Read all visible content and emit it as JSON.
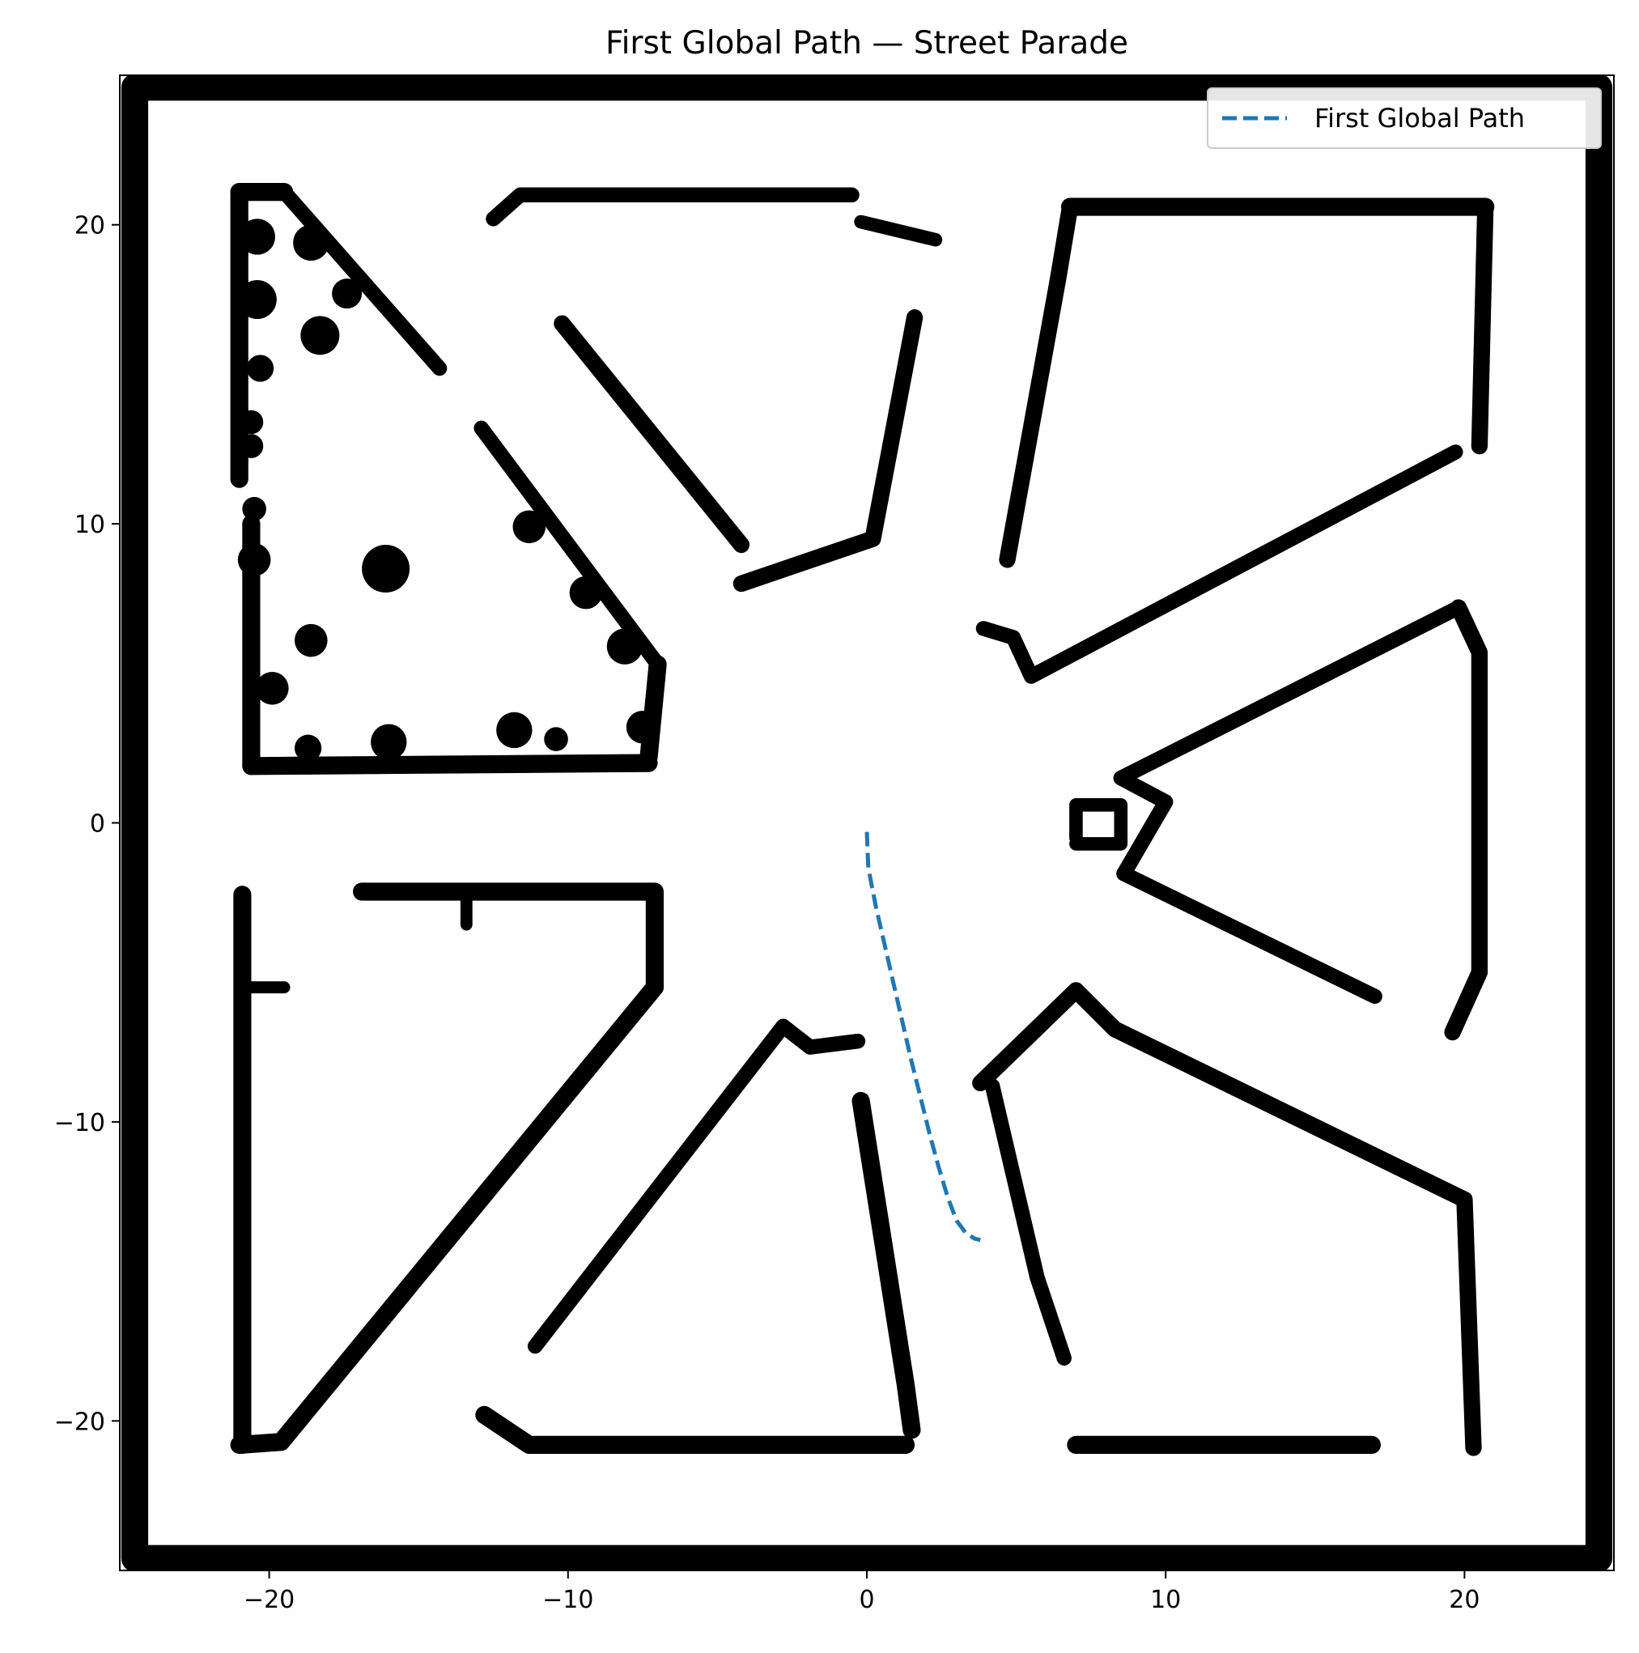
{
  "chart_data": {
    "type": "line",
    "title": "First Global Path — Street Parade",
    "xlabel": "",
    "ylabel": "",
    "xlim": [
      -25,
      25
    ],
    "ylim": [
      -25,
      25
    ],
    "xticks": [
      -20,
      -10,
      0,
      10,
      20
    ],
    "yticks": [
      20,
      10,
      0,
      -10,
      -20
    ],
    "xtick_labels": [
      "−20",
      "−10",
      "0",
      "10",
      "20"
    ],
    "ytick_labels": [
      "20",
      "10",
      "0",
      "−10",
      "−20"
    ],
    "grid": false,
    "legend_position": "top-right",
    "background_image": "occupancy-grid-map",
    "series": [
      {
        "name": "First Global Path",
        "style": "dashed",
        "color": "#1f77b4",
        "x": [
          0.0,
          0.05,
          0.3,
          0.6,
          0.9,
          1.2,
          1.5,
          1.8,
          2.1,
          2.4,
          2.7,
          3.0,
          3.3,
          3.6,
          3.8
        ],
        "y": [
          -0.3,
          -1.5,
          -2.8,
          -4.1,
          -5.4,
          -6.7,
          -8.0,
          -9.2,
          -10.4,
          -11.5,
          -12.5,
          -13.3,
          -13.7,
          -13.9,
          -13.95
        ]
      }
    ],
    "obstacles": [
      {
        "name": "outer-wall",
        "pts": [
          [
            -24.5,
            24.6
          ],
          [
            24.5,
            24.6
          ],
          [
            24.5,
            -24.6
          ],
          [
            -24.5,
            -24.6
          ],
          [
            -24.5,
            24.6
          ]
        ],
        "w": 0.9
      },
      {
        "name": "nw-block-west",
        "pts": [
          [
            -21.0,
            21.1
          ],
          [
            -21.0,
            11.5
          ]
        ],
        "w": 0.6
      },
      {
        "name": "nw-block-west-lower",
        "pts": [
          [
            -20.6,
            10.0
          ],
          [
            -20.6,
            1.9
          ]
        ],
        "w": 0.6
      },
      {
        "name": "nw-block-top",
        "pts": [
          [
            -21.0,
            21.1
          ],
          [
            -19.5,
            21.1
          ]
        ],
        "w": 0.6
      },
      {
        "name": "nw-block-diagonal",
        "pts": [
          [
            -19.5,
            21.1
          ],
          [
            -14.3,
            15.2
          ]
        ],
        "w": 0.5
      },
      {
        "name": "nw-block-diagonal-2",
        "pts": [
          [
            -12.9,
            13.2
          ],
          [
            -7.0,
            5.3
          ]
        ],
        "w": 0.5
      },
      {
        "name": "nw-block-east",
        "pts": [
          [
            -7.0,
            5.3
          ],
          [
            -7.3,
            2.2
          ]
        ],
        "w": 0.6
      },
      {
        "name": "nw-block-bottom",
        "pts": [
          [
            -20.6,
            1.9
          ],
          [
            -7.3,
            2.0
          ]
        ],
        "w": 0.6
      },
      {
        "name": "nw-diag-upper",
        "pts": [
          [
            -12.5,
            20.2
          ],
          [
            -11.6,
            21.0
          ],
          [
            -0.5,
            21.0
          ]
        ],
        "w": 0.5
      },
      {
        "name": "north-short-wall",
        "pts": [
          [
            -0.2,
            20.1
          ],
          [
            2.3,
            19.5
          ]
        ],
        "w": 0.45
      },
      {
        "name": "north-center-diag",
        "pts": [
          [
            -10.2,
            16.7
          ],
          [
            -4.2,
            9.3
          ]
        ],
        "w": 0.55
      },
      {
        "name": "north-center-right",
        "pts": [
          [
            1.6,
            16.9
          ],
          [
            0.2,
            9.5
          ],
          [
            -4.2,
            8.0
          ]
        ],
        "w": 0.55
      },
      {
        "name": "ne-block-west",
        "pts": [
          [
            6.8,
            20.6
          ],
          [
            6.4,
            18.2
          ],
          [
            4.7,
            8.8
          ]
        ],
        "w": 0.55
      },
      {
        "name": "ne-block-top",
        "pts": [
          [
            6.8,
            20.6
          ],
          [
            20.7,
            20.6
          ]
        ],
        "w": 0.6
      },
      {
        "name": "ne-block-east",
        "pts": [
          [
            20.7,
            20.6
          ],
          [
            20.5,
            12.6
          ]
        ],
        "w": 0.55
      },
      {
        "name": "ne-diag",
        "pts": [
          [
            19.7,
            12.4
          ],
          [
            5.5,
            4.9
          ],
          [
            4.9,
            6.2
          ],
          [
            3.9,
            6.5
          ]
        ],
        "w": 0.5
      },
      {
        "name": "east-upper-diag",
        "pts": [
          [
            19.8,
            7.2
          ],
          [
            8.5,
            1.5
          ],
          [
            10.0,
            0.7
          ],
          [
            8.6,
            -1.7
          ]
        ],
        "w": 0.5
      },
      {
        "name": "east-right-wall",
        "pts": [
          [
            19.8,
            7.2
          ],
          [
            20.5,
            5.7
          ],
          [
            20.5,
            -5.0
          ],
          [
            19.6,
            -7.0
          ]
        ],
        "w": 0.55
      },
      {
        "name": "east-lower-diag",
        "pts": [
          [
            8.6,
            -1.7
          ],
          [
            17.0,
            -5.8
          ]
        ],
        "w": 0.5
      },
      {
        "name": "east-stub",
        "pts": [
          [
            7.0,
            -0.5
          ],
          [
            7.0,
            0.6
          ],
          [
            8.5,
            0.6
          ],
          [
            8.5,
            -0.7
          ],
          [
            7.0,
            -0.7
          ]
        ],
        "w": 0.45
      },
      {
        "name": "se-diag",
        "pts": [
          [
            3.8,
            -8.7
          ],
          [
            7.0,
            -5.6
          ],
          [
            8.3,
            -6.9
          ],
          [
            20.0,
            -12.6
          ],
          [
            20.3,
            -20.9
          ]
        ],
        "w": 0.55
      },
      {
        "name": "se-inner",
        "pts": [
          [
            4.2,
            -8.8
          ],
          [
            5.7,
            -15.2
          ],
          [
            6.6,
            -17.9
          ]
        ],
        "w": 0.5
      },
      {
        "name": "se-bottom",
        "pts": [
          [
            7.0,
            -20.8
          ],
          [
            16.9,
            -20.8
          ]
        ],
        "w": 0.6
      },
      {
        "name": "south-center",
        "pts": [
          [
            -0.2,
            -9.3
          ],
          [
            1.3,
            -18.8
          ],
          [
            1.5,
            -20.3
          ]
        ],
        "w": 0.6
      },
      {
        "name": "south-bottom",
        "pts": [
          [
            -12.8,
            -19.8
          ],
          [
            -11.3,
            -20.8
          ],
          [
            1.3,
            -20.8
          ]
        ],
        "w": 0.6
      },
      {
        "name": "sw-diag-inner",
        "pts": [
          [
            -11.1,
            -17.5
          ],
          [
            -2.8,
            -6.8
          ],
          [
            -1.9,
            -7.5
          ],
          [
            -0.3,
            -7.3
          ]
        ],
        "w": 0.5
      },
      {
        "name": "sw-top",
        "pts": [
          [
            -16.9,
            -2.3
          ],
          [
            -7.1,
            -2.3
          ],
          [
            -7.1,
            -5.5
          ]
        ],
        "w": 0.6
      },
      {
        "name": "sw-big-diag",
        "pts": [
          [
            -7.1,
            -5.5
          ],
          [
            -19.6,
            -20.7
          ],
          [
            -21.0,
            -20.8
          ]
        ],
        "w": 0.6
      },
      {
        "name": "sw-west",
        "pts": [
          [
            -20.9,
            -2.4
          ],
          [
            -20.9,
            -20.8
          ]
        ],
        "w": 0.6
      },
      {
        "name": "sw-stub",
        "pts": [
          [
            -13.4,
            -2.3
          ],
          [
            -13.4,
            -3.4
          ]
        ],
        "w": 0.4
      },
      {
        "name": "sw-stub-2",
        "pts": [
          [
            -20.9,
            -5.5
          ],
          [
            -19.5,
            -5.5
          ]
        ],
        "w": 0.4
      }
    ],
    "blobs": [
      {
        "x": -18.6,
        "y": 19.4,
        "r": 0.6
      },
      {
        "x": -17.4,
        "y": 17.7,
        "r": 0.5
      },
      {
        "x": -18.3,
        "y": 16.3,
        "r": 0.65
      },
      {
        "x": -20.4,
        "y": 19.6,
        "r": 0.6
      },
      {
        "x": -20.4,
        "y": 17.5,
        "r": 0.65
      },
      {
        "x": -20.3,
        "y": 15.2,
        "r": 0.45
      },
      {
        "x": -16.1,
        "y": 8.5,
        "r": 0.8
      },
      {
        "x": -18.6,
        "y": 6.1,
        "r": 0.55
      },
      {
        "x": -19.9,
        "y": 4.5,
        "r": 0.55
      },
      {
        "x": -20.5,
        "y": 8.8,
        "r": 0.55
      },
      {
        "x": -11.3,
        "y": 9.9,
        "r": 0.55
      },
      {
        "x": -9.4,
        "y": 7.7,
        "r": 0.55
      },
      {
        "x": -8.1,
        "y": 5.9,
        "r": 0.6
      },
      {
        "x": -7.5,
        "y": 3.2,
        "r": 0.55
      },
      {
        "x": -11.8,
        "y": 3.1,
        "r": 0.6
      },
      {
        "x": -16.0,
        "y": 2.7,
        "r": 0.6
      },
      {
        "x": -18.7,
        "y": 2.5,
        "r": 0.45
      },
      {
        "x": -10.4,
        "y": 2.8,
        "r": 0.4
      },
      {
        "x": -20.6,
        "y": 13.4,
        "r": 0.4
      },
      {
        "x": -20.5,
        "y": 10.5,
        "r": 0.4
      },
      {
        "x": -20.6,
        "y": 12.6,
        "r": 0.4
      }
    ]
  }
}
